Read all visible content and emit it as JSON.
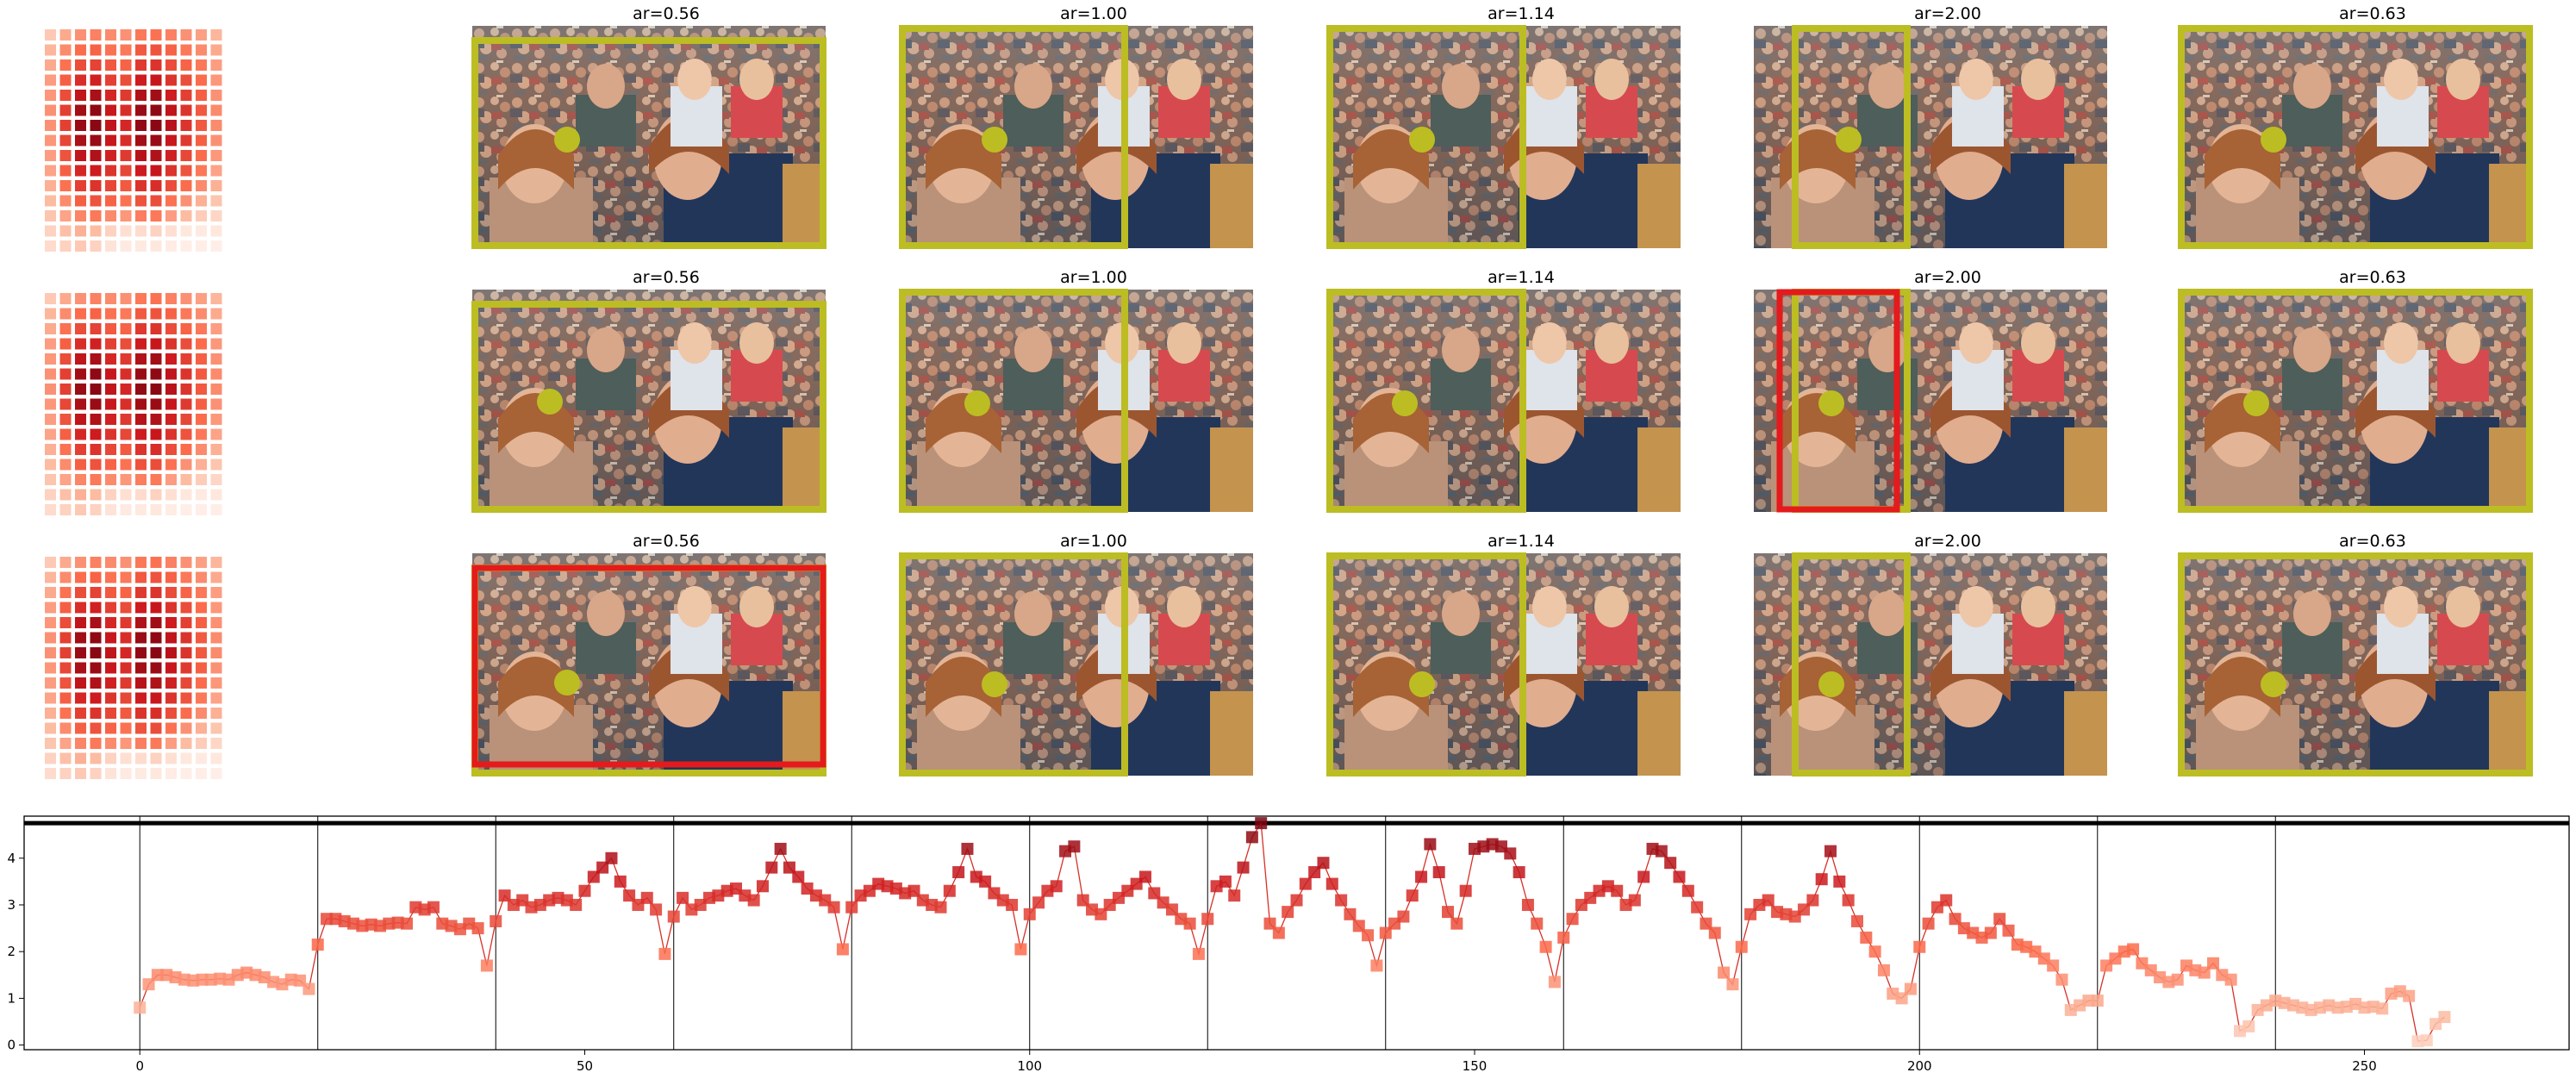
{
  "heatmap": {
    "rows": 15,
    "cols": 12,
    "values": [
      [
        0.2,
        0.32,
        0.4,
        0.45,
        0.42,
        0.4,
        0.48,
        0.5,
        0.45,
        0.4,
        0.35,
        0.28
      ],
      [
        0.28,
        0.42,
        0.52,
        0.55,
        0.5,
        0.48,
        0.58,
        0.6,
        0.55,
        0.48,
        0.42,
        0.32
      ],
      [
        0.32,
        0.5,
        0.62,
        0.65,
        0.58,
        0.55,
        0.68,
        0.7,
        0.62,
        0.55,
        0.48,
        0.36
      ],
      [
        0.36,
        0.56,
        0.72,
        0.76,
        0.66,
        0.62,
        0.78,
        0.8,
        0.7,
        0.62,
        0.52,
        0.38
      ],
      [
        0.38,
        0.62,
        0.82,
        0.88,
        0.74,
        0.68,
        0.86,
        0.9,
        0.78,
        0.66,
        0.56,
        0.4
      ],
      [
        0.4,
        0.66,
        0.9,
        0.95,
        0.8,
        0.72,
        0.92,
        0.95,
        0.82,
        0.7,
        0.58,
        0.42
      ],
      [
        0.4,
        0.66,
        0.92,
        0.96,
        0.82,
        0.74,
        0.94,
        0.96,
        0.84,
        0.7,
        0.58,
        0.42
      ],
      [
        0.38,
        0.64,
        0.88,
        0.92,
        0.8,
        0.72,
        0.9,
        0.92,
        0.8,
        0.68,
        0.56,
        0.4
      ],
      [
        0.36,
        0.6,
        0.82,
        0.86,
        0.76,
        0.68,
        0.84,
        0.86,
        0.76,
        0.64,
        0.52,
        0.38
      ],
      [
        0.34,
        0.56,
        0.74,
        0.78,
        0.7,
        0.64,
        0.78,
        0.8,
        0.7,
        0.6,
        0.48,
        0.34
      ],
      [
        0.3,
        0.5,
        0.66,
        0.7,
        0.64,
        0.58,
        0.7,
        0.72,
        0.62,
        0.52,
        0.42,
        0.3
      ],
      [
        0.26,
        0.42,
        0.56,
        0.6,
        0.55,
        0.5,
        0.6,
        0.62,
        0.5,
        0.4,
        0.3,
        0.22
      ],
      [
        0.22,
        0.34,
        0.44,
        0.48,
        0.42,
        0.38,
        0.46,
        0.48,
        0.36,
        0.26,
        0.18,
        0.14
      ],
      [
        0.16,
        0.24,
        0.3,
        0.26,
        0.16,
        0.1,
        0.12,
        0.16,
        0.1,
        0.06,
        0.05,
        0.06
      ],
      [
        0.12,
        0.16,
        0.2,
        0.16,
        0.08,
        0.05,
        0.05,
        0.06,
        0.04,
        0.03,
        0.03,
        0.03
      ]
    ]
  },
  "thumbnail_titles": [
    "ar=0.56",
    "ar=1.00",
    "ar=1.14",
    "ar=2.00",
    "ar=0.63"
  ],
  "crop_colors": {
    "outline": "#bcbd22",
    "highlight": "#e41a1c",
    "dot": "#bcbd22"
  },
  "chart_data": {
    "type": "line",
    "title": "",
    "xlabel": "",
    "ylabel": "",
    "xlim": [
      -13,
      273
    ],
    "ylim": [
      -0.1,
      4.9
    ],
    "xticks": [
      0,
      50,
      100,
      150,
      200,
      250
    ],
    "yticks": [
      0,
      1,
      2,
      3,
      4
    ],
    "upper_reference_line": 4.75,
    "vertical_lines": [
      0,
      20,
      40,
      60,
      80,
      100,
      120,
      140,
      160,
      180,
      200,
      220,
      240
    ],
    "marker": "square",
    "color": "#d73027",
    "series": [
      {
        "values": [
          0.8,
          1.3,
          1.5,
          1.5,
          1.45,
          1.4,
          1.38,
          1.4,
          1.4,
          1.42,
          1.4,
          1.5,
          1.55,
          1.5,
          1.45,
          1.35,
          1.3,
          1.4,
          1.38,
          1.2,
          2.15,
          2.7,
          2.7,
          2.65,
          2.6,
          2.55,
          2.58,
          2.55,
          2.6,
          2.62,
          2.6,
          2.95,
          2.9,
          2.95,
          2.6,
          2.55,
          2.48,
          2.6,
          2.5,
          1.7,
          2.65,
          3.2,
          3.0,
          3.1,
          2.95,
          3.0,
          3.1,
          3.15,
          3.1,
          3.0,
          3.3,
          3.6,
          3.8,
          4.0,
          3.5,
          3.2,
          3.0,
          3.15,
          2.9,
          1.95,
          2.75,
          3.15,
          2.9,
          3.0,
          3.15,
          3.2,
          3.3,
          3.35,
          3.2,
          3.1,
          3.4,
          3.8,
          4.2,
          3.8,
          3.6,
          3.35,
          3.2,
          3.1,
          2.95,
          2.05,
          2.95,
          3.2,
          3.3,
          3.45,
          3.4,
          3.35,
          3.25,
          3.3,
          3.1,
          3.0,
          2.95,
          3.3,
          3.7,
          4.2,
          3.6,
          3.5,
          3.25,
          3.1,
          3.0,
          2.05,
          2.8,
          3.05,
          3.3,
          3.4,
          4.15,
          4.25,
          3.1,
          2.9,
          2.8,
          3.0,
          3.15,
          3.3,
          3.45,
          3.6,
          3.25,
          3.05,
          2.9,
          2.7,
          2.6,
          1.95,
          2.7,
          3.4,
          3.5,
          3.2,
          3.8,
          4.45,
          4.75,
          2.6,
          2.4,
          2.85,
          3.1,
          3.45,
          3.7,
          3.9,
          3.45,
          3.1,
          2.8,
          2.55,
          2.35,
          1.7,
          2.4,
          2.6,
          2.75,
          3.2,
          3.6,
          4.3,
          3.7,
          2.85,
          2.6,
          3.3,
          4.2,
          4.25,
          4.3,
          4.25,
          4.1,
          3.7,
          3.0,
          2.6,
          2.1,
          1.35,
          2.3,
          2.7,
          3.0,
          3.15,
          3.3,
          3.4,
          3.3,
          3.0,
          3.1,
          3.6,
          4.2,
          4.15,
          3.9,
          3.6,
          3.3,
          2.95,
          2.6,
          2.4,
          1.55,
          1.3,
          2.1,
          2.8,
          3.0,
          3.1,
          2.85,
          2.8,
          2.75,
          2.9,
          3.1,
          3.55,
          4.15,
          3.5,
          3.1,
          2.65,
          2.3,
          2.0,
          1.6,
          1.1,
          1.0,
          1.2,
          2.1,
          2.6,
          2.95,
          3.1,
          2.7,
          2.5,
          2.4,
          2.3,
          2.4,
          2.7,
          2.45,
          2.15,
          2.1,
          2.0,
          1.85,
          1.7,
          1.4,
          0.75,
          0.85,
          0.95,
          0.95,
          1.7,
          1.85,
          2.0,
          2.05,
          1.75,
          1.6,
          1.45,
          1.35,
          1.4,
          1.7,
          1.6,
          1.55,
          1.75,
          1.5,
          1.4,
          0.3,
          0.4,
          0.75,
          0.85,
          0.95,
          0.9,
          0.85,
          0.8,
          0.75,
          0.8,
          0.85,
          0.8,
          0.82,
          0.88,
          0.8,
          0.82,
          0.78,
          1.1,
          1.15,
          1.05,
          0.08,
          0.1,
          0.45,
          0.6
        ]
      }
    ]
  }
}
